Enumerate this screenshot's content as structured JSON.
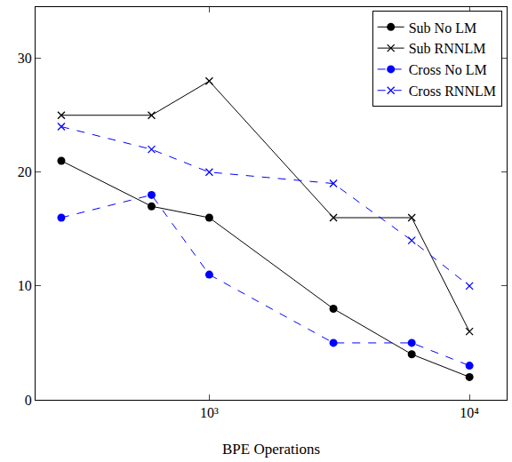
{
  "chart_data": {
    "type": "line",
    "x_label": "BPE Operations",
    "x": [
      270,
      600,
      1000,
      3000,
      6000,
      10000
    ],
    "series": [
      {
        "name": "Sub No LM",
        "color": "#000000",
        "marker": "circle",
        "line_style": "solid",
        "values": [
          21,
          17,
          16,
          8,
          4,
          2
        ]
      },
      {
        "name": "Sub RNNLM",
        "color": "#000000",
        "marker": "x",
        "line_style": "solid",
        "values": [
          25,
          25,
          28,
          16,
          16,
          6
        ]
      },
      {
        "name": "Cross No LM",
        "color": "#0000ff",
        "marker": "circle",
        "line_style": "dash",
        "values": [
          16,
          18,
          11,
          5,
          5,
          3
        ]
      },
      {
        "name": "Cross RNNLM",
        "color": "#0000ff",
        "marker": "x",
        "line_style": "dash",
        "values": [
          24,
          22,
          20,
          19,
          14,
          10
        ]
      }
    ],
    "log": "x",
    "xlim": [
      215,
      13900
    ],
    "xticks": [
      {
        "value": 1000,
        "label": "10³"
      },
      {
        "value": 10000,
        "label": "10⁴"
      }
    ],
    "ylim": [
      0,
      34.5
    ],
    "yticks": [
      0,
      10,
      20,
      30
    ],
    "grid": false,
    "legend": "upper right"
  }
}
